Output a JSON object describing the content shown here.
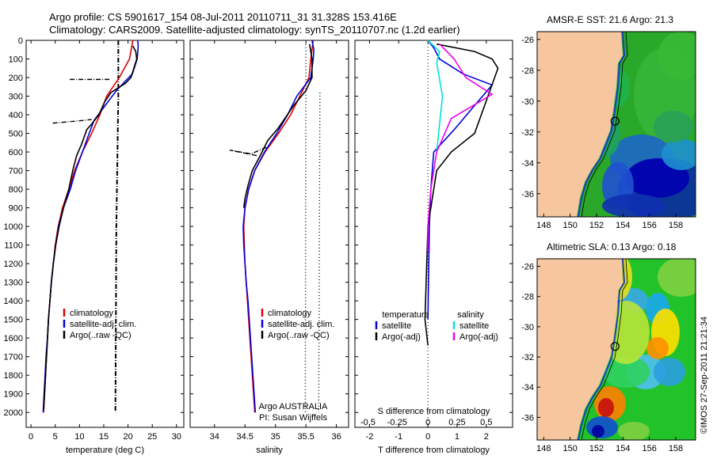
{
  "header": {
    "line1": "Argo profile: CS 5901617_154 08-Jul-2011 20110711_31 31.328S 153.416E",
    "line2": "Climatology: CARS2009. Satellite-adjusted climatology: synTS_20110707.nc (1.2d earlier)"
  },
  "credit": "©IMOS 27-Sep-2011 21:21:34",
  "colors": {
    "clim": "#e00000",
    "sat": "#0000dd",
    "argo": "#000000",
    "sat_s": "#00e0e0",
    "argo_s": "#ee00ee",
    "land": "#f6c79f"
  },
  "chart_data": [
    {
      "type": "line",
      "xlabel": "temperature (deg C)",
      "xlim": [
        -1,
        31.5
      ],
      "xticks": [
        0,
        5,
        10,
        15,
        20,
        25,
        30
      ],
      "ylim": [
        2080,
        0
      ],
      "yticks": [
        0,
        100,
        200,
        300,
        400,
        500,
        600,
        700,
        800,
        900,
        1000,
        1100,
        1200,
        1300,
        1400,
        1500,
        1600,
        1700,
        1800,
        1900,
        2000
      ],
      "legend": [
        "climatology",
        "satellite-adj. clim.",
        "Argo(..raw -QC)"
      ],
      "series": [
        {
          "name": "climatology",
          "points": [
            [
              21,
              0
            ],
            [
              20.8,
              30
            ],
            [
              20.3,
              100
            ],
            [
              18.2,
              200
            ],
            [
              15.6,
              300
            ],
            [
              14.2,
              400
            ],
            [
              12.5,
              500
            ],
            [
              10.6,
              600
            ],
            [
              9.0,
              700
            ],
            [
              7.8,
              800
            ],
            [
              6.5,
              900
            ],
            [
              5.6,
              1000
            ],
            [
              5.0,
              1100
            ],
            [
              4.6,
              1200
            ],
            [
              4.2,
              1300
            ],
            [
              3.9,
              1400
            ],
            [
              3.6,
              1500
            ],
            [
              3.4,
              1600
            ],
            [
              3.2,
              1700
            ],
            [
              3.0,
              1800
            ],
            [
              2.8,
              1900
            ],
            [
              2.6,
              2000
            ]
          ]
        },
        {
          "name": "satellite-adj. clim.",
          "points": [
            [
              22,
              0
            ],
            [
              22.1,
              30
            ],
            [
              21.9,
              100
            ],
            [
              20.9,
              180
            ],
            [
              17.6,
              270
            ],
            [
              15.3,
              350
            ],
            [
              13.0,
              430
            ],
            [
              12.0,
              500
            ],
            [
              10.6,
              600
            ],
            [
              9.2,
              700
            ],
            [
              8.1,
              800
            ],
            [
              6.7,
              900
            ],
            [
              5.7,
              1000
            ],
            [
              5.1,
              1100
            ],
            [
              4.6,
              1200
            ],
            [
              4.2,
              1300
            ],
            [
              3.9,
              1400
            ],
            [
              3.6,
              1500
            ],
            [
              3.4,
              1600
            ],
            [
              3.1,
              1700
            ],
            [
              2.9,
              1800
            ],
            [
              2.7,
              1900
            ],
            [
              2.5,
              2000
            ]
          ]
        },
        {
          "name": "Argo(..raw -QC)",
          "points": [
            [
              21,
              30
            ],
            [
              21.6,
              60
            ],
            [
              21.8,
              100
            ],
            [
              20.6,
              200
            ],
            [
              19.5,
              230
            ],
            [
              16.5,
              280
            ],
            [
              15.2,
              330
            ],
            [
              14.0,
              400
            ],
            [
              12.5,
              450
            ],
            [
              11.5,
              480
            ],
            [
              10.4,
              560
            ],
            [
              9.4,
              620
            ],
            [
              8.6,
              700
            ],
            [
              7.8,
              800
            ],
            [
              6.7,
              900
            ],
            [
              5.8,
              1000
            ],
            [
              5.1,
              1100
            ],
            [
              4.6,
              1200
            ],
            [
              4.2,
              1300
            ],
            [
              3.9,
              1400
            ],
            [
              3.6,
              1500
            ],
            [
              3.4,
              1600
            ],
            [
              3.2,
              1700
            ],
            [
              3.0,
              1800
            ],
            [
              2.8,
              1900
            ],
            [
              2.6,
              1985
            ]
          ]
        }
      ],
      "raw_argo_dashdot": [
        [
          [
            18,
            0
          ],
          [
            18,
            300
          ],
          [
            17.6,
            1000
          ],
          [
            17.4,
            2000
          ]
        ],
        [
          [
            4.5,
            445
          ],
          [
            11,
            430
          ],
          [
            12.5,
            425
          ]
        ],
        [
          [
            8,
            210
          ],
          [
            16.5,
            210
          ]
        ]
      ]
    },
    {
      "type": "line",
      "xlabel": "salinity",
      "xlim": [
        33.6,
        36.2
      ],
      "xticks": [
        34,
        34.5,
        35,
        35.5,
        36
      ],
      "ylim": [
        2080,
        0
      ],
      "legend": [
        "climatology",
        "satellite-adj. clim.",
        "Argo(..raw -QC)"
      ],
      "annotations": [
        "Argo AUSTRALIA",
        "PI: Susan Wijffels"
      ],
      "series": [
        {
          "name": "climatology",
          "points": [
            [
              35.62,
              0
            ],
            [
              35.6,
              50
            ],
            [
              35.58,
              100
            ],
            [
              35.55,
              200
            ],
            [
              35.4,
              300
            ],
            [
              35.25,
              400
            ],
            [
              35.05,
              500
            ],
            [
              34.83,
              600
            ],
            [
              34.66,
              700
            ],
            [
              34.56,
              800
            ],
            [
              34.5,
              900
            ],
            [
              34.48,
              1000
            ],
            [
              34.49,
              1100
            ],
            [
              34.5,
              1200
            ],
            [
              34.52,
              1300
            ],
            [
              34.54,
              1400
            ],
            [
              34.56,
              1500
            ],
            [
              34.58,
              1600
            ],
            [
              34.6,
              1700
            ],
            [
              34.62,
              1800
            ],
            [
              34.64,
              1900
            ],
            [
              34.66,
              2000
            ]
          ]
        },
        {
          "name": "satellite-adj. clim.",
          "points": [
            [
              35.6,
              0
            ],
            [
              35.63,
              50
            ],
            [
              35.62,
              100
            ],
            [
              35.58,
              200
            ],
            [
              35.35,
              300
            ],
            [
              35.2,
              400
            ],
            [
              35.02,
              500
            ],
            [
              34.82,
              600
            ],
            [
              34.66,
              700
            ],
            [
              34.56,
              800
            ],
            [
              34.5,
              900
            ],
            [
              34.47,
              1000
            ],
            [
              34.48,
              1100
            ],
            [
              34.5,
              1200
            ],
            [
              34.52,
              1300
            ],
            [
              34.55,
              1400
            ],
            [
              34.57,
              1500
            ],
            [
              34.59,
              1600
            ],
            [
              34.61,
              1700
            ],
            [
              34.63,
              1800
            ],
            [
              34.65,
              1900
            ],
            [
              34.67,
              2000
            ]
          ]
        },
        {
          "name": "Argo(..raw -QC)",
          "points": [
            [
              35.56,
              20
            ],
            [
              35.6,
              100
            ],
            [
              35.6,
              200
            ],
            [
              35.5,
              270
            ],
            [
              35.3,
              350
            ],
            [
              35.05,
              470
            ],
            [
              34.87,
              540
            ],
            [
              34.75,
              620
            ],
            [
              34.62,
              700
            ],
            [
              34.55,
              780
            ],
            [
              34.5,
              850
            ],
            [
              34.48,
              900
            ]
          ]
        }
      ],
      "raw_argo_dashdot": [
        [
          [
            35.5,
            20
          ],
          [
            35.49,
            2000
          ]
        ],
        [
          [
            35.73,
            280
          ],
          [
            35.71,
            2000
          ]
        ],
        [
          [
            34.85,
            575
          ],
          [
            34.6,
            610
          ],
          [
            34.25,
            590
          ],
          [
            34.7,
            620
          ]
        ]
      ]
    },
    {
      "type": "line",
      "xlabel": "T difference from climatology",
      "xlabel_top": "S difference from climatology",
      "xlim": [
        -2.5,
        2.9
      ],
      "xticks": [
        -2,
        -1,
        0,
        1,
        2
      ],
      "xticks_top": [
        "-0.5",
        "-0.25",
        "0",
        "0.25",
        "0.5"
      ],
      "ylim": [
        2080,
        0
      ],
      "legend_left": {
        "title": "temperature",
        "items": [
          "satellite",
          "Argo(-adj)"
        ]
      },
      "legend_right": {
        "title": "salinity",
        "items": [
          "satellite",
          "Argo(-adj)"
        ]
      },
      "series": [
        {
          "name": "satellite",
          "quantity": "temperature",
          "points": [
            [
              0,
              0
            ],
            [
              0.2,
              40
            ],
            [
              0.4,
              100
            ],
            [
              1.2,
              180
            ],
            [
              2.2,
              240
            ],
            [
              1.6,
              350
            ],
            [
              0.9,
              480
            ],
            [
              0.2,
              600
            ],
            [
              0.1,
              800
            ],
            [
              0.05,
              1000
            ],
            [
              0,
              1500
            ]
          ]
        },
        {
          "name": "Argo(-adj)",
          "quantity": "temperature",
          "points": [
            [
              0.3,
              20
            ],
            [
              1.6,
              60
            ],
            [
              2.2,
              100
            ],
            [
              2.4,
              150
            ],
            [
              1.6,
              500
            ],
            [
              0.8,
              600
            ],
            [
              0.3,
              700
            ],
            [
              0.1,
              900
            ],
            [
              0,
              1000
            ],
            [
              -0.1,
              1500
            ],
            [
              0,
              1640
            ]
          ]
        },
        {
          "name": "satellite",
          "quantity": "salinity",
          "points": [
            [
              0,
              0
            ],
            [
              0.4,
              60
            ],
            [
              0.3,
              120
            ],
            [
              0.5,
              300
            ],
            [
              0.4,
              450
            ],
            [
              0.3,
              600
            ]
          ]
        },
        {
          "name": "Argo(-adj)",
          "quantity": "salinity",
          "points": [
            [
              0.4,
              20
            ],
            [
              0.9,
              100
            ],
            [
              1.3,
              200
            ],
            [
              2.2,
              290
            ],
            [
              0.8,
              420
            ],
            [
              0.3,
              600
            ],
            [
              0.1,
              800
            ],
            [
              0,
              1000
            ],
            [
              0,
              1140
            ]
          ]
        }
      ]
    },
    {
      "type": "heatmap",
      "title": "AMSR-E SST: 21.6 Argo: 21.3",
      "xticks": [
        148,
        150,
        152,
        154,
        156,
        158
      ],
      "yticks": [
        -26,
        -28,
        -30,
        -32,
        -34,
        -36
      ],
      "xlim": [
        147.5,
        159.5
      ],
      "ylim": [
        -37.5,
        -25.5
      ],
      "marker": {
        "lon": 153.4,
        "lat": -31.3
      }
    },
    {
      "type": "heatmap",
      "title": "Altimetric SLA: 0.13 Argo: 0.18",
      "xticks": [
        148,
        150,
        152,
        154,
        156,
        158
      ],
      "yticks": [
        -26,
        -28,
        -30,
        -32,
        -34,
        -36
      ],
      "xlim": [
        147.5,
        159.5
      ],
      "ylim": [
        -37.5,
        -25.5
      ],
      "marker": {
        "lon": 153.4,
        "lat": -31.3
      }
    }
  ]
}
